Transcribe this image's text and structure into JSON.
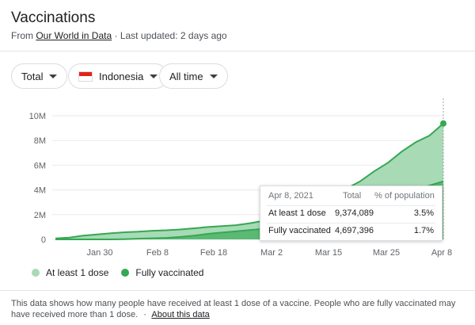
{
  "header": {
    "title": "Vaccinations",
    "source_prefix": "From",
    "source_link": "Our World in Data",
    "updated": "· Last updated: 2 days ago"
  },
  "filters": {
    "metric": "Total",
    "country": "Indonesia",
    "range": "All time"
  },
  "legend": {
    "first": "At least 1 dose",
    "second": "Fully vaccinated"
  },
  "tooltip": {
    "date": "Apr 8, 2021",
    "col_total": "Total",
    "col_pct": "% of population",
    "rows": [
      {
        "label": "At least 1 dose",
        "total": "9,374,089",
        "pct": "3.5%"
      },
      {
        "label": "Fully vaccinated",
        "total": "4,697,396",
        "pct": "1.7%"
      }
    ]
  },
  "footer": {
    "text": "This data shows how many people have received at least 1 dose of a vaccine. People who are fully vaccinated may have received more than 1 dose.",
    "separator": "·",
    "link": "About this data"
  },
  "colors": {
    "first_dose": "#a8dab5",
    "fully": "#34a853",
    "fully_area": "#5bb974"
  },
  "chart_data": {
    "type": "area",
    "x_ticks": [
      "Jan 30",
      "Feb 8",
      "Feb 18",
      "Mar 2",
      "Mar 15",
      "Mar 25",
      "Apr 8"
    ],
    "y_ticks": [
      "0",
      "2M",
      "4M",
      "6M",
      "8M",
      "10M"
    ],
    "ylim": [
      0,
      10000000
    ],
    "grid": true,
    "legend_position": "bottom",
    "x": [
      "Jan 13",
      "Jan 16",
      "Jan 19",
      "Jan 22",
      "Jan 25",
      "Jan 28",
      "Jan 31",
      "Feb 3",
      "Feb 6",
      "Feb 9",
      "Feb 12",
      "Feb 15",
      "Feb 18",
      "Feb 21",
      "Feb 24",
      "Feb 27",
      "Mar 2",
      "Mar 5",
      "Mar 8",
      "Mar 11",
      "Mar 14",
      "Mar 17",
      "Mar 20",
      "Mar 23",
      "Mar 26",
      "Mar 29",
      "Apr 1",
      "Apr 4",
      "Apr 8"
    ],
    "series": [
      {
        "name": "At least 1 dose",
        "values": [
          80000,
          150000,
          300000,
          400000,
          500000,
          580000,
          620000,
          700000,
          740000,
          800000,
          900000,
          1000000,
          1080000,
          1150000,
          1300000,
          1500000,
          1700000,
          2050000,
          2450000,
          3000000,
          3600000,
          4100000,
          4700000,
          5500000,
          6200000,
          7100000,
          7850000,
          8400000,
          9374089
        ]
      },
      {
        "name": "Fully vaccinated",
        "values": [
          0,
          0,
          0,
          0,
          0,
          20000,
          60000,
          90000,
          120000,
          200000,
          300000,
          450000,
          550000,
          650000,
          750000,
          850000,
          950000,
          1050000,
          1200000,
          1400000,
          1700000,
          2000000,
          2400000,
          2800000,
          3200000,
          3600000,
          4000000,
          4350000,
          4697396
        ]
      }
    ]
  }
}
